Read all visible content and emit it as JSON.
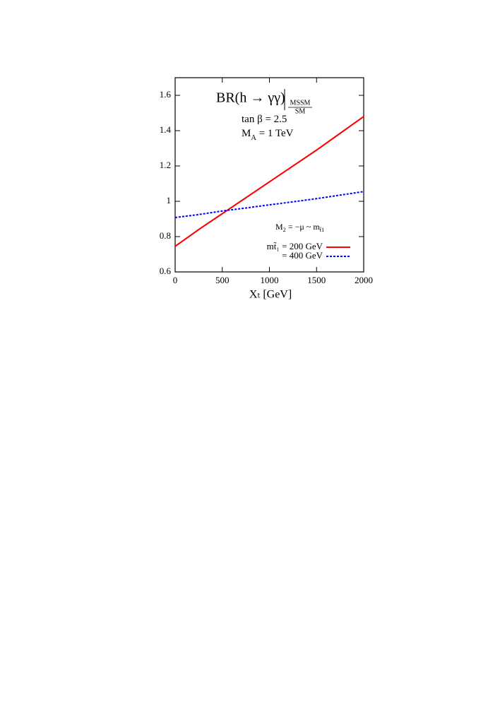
{
  "chart_data": {
    "type": "line",
    "title": "BR(h → γγ)",
    "title_sup": "MSSM",
    "title_sub": "SM",
    "annotations": [
      [
        "tan β = 2.5"
      ],
      [
        "M",
        "A",
        " = 1 TeV"
      ],
      [
        "M",
        "2",
        " = −μ ~ m",
        "t̃1"
      ]
    ],
    "x_label": "Xₜ [GeV]",
    "x": [
      0,
      250,
      500,
      750,
      1000,
      1250,
      1500,
      1750,
      2000
    ],
    "series": [
      {
        "name": "mt̃₁ = 200 GeV",
        "color": "#ff0000",
        "style": "solid",
        "values": [
          0.745,
          0.84,
          0.93,
          1.02,
          1.11,
          1.2,
          1.29,
          1.385,
          1.48
        ]
      },
      {
        "name": "= 400 GeV",
        "color": "#0000ff",
        "style": "dotted",
        "values": [
          0.908,
          0.925,
          0.945,
          0.962,
          0.98,
          0.997,
          1.015,
          1.035,
          1.055
        ]
      }
    ],
    "xlim": [
      0,
      2000
    ],
    "xticks": [
      0,
      500,
      1000,
      1500,
      2000
    ],
    "ylim": [
      0.6,
      1.7
    ],
    "yticks": [
      0.6,
      0.8,
      1,
      1.2,
      1.4,
      1.6
    ]
  }
}
